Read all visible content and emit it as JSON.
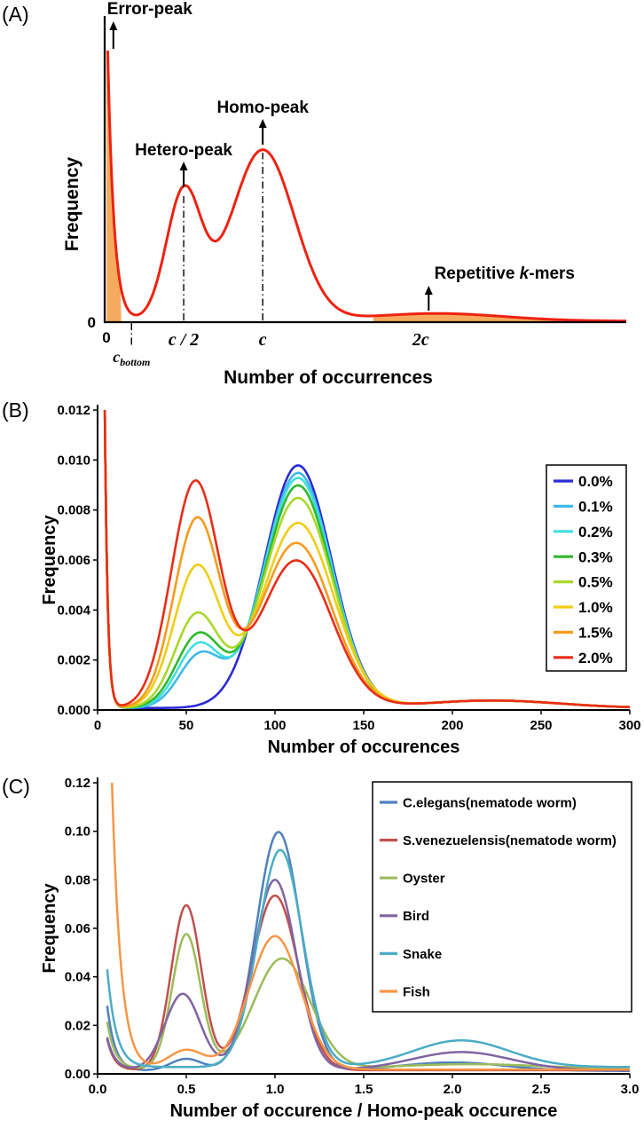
{
  "panels": {
    "a": {
      "tag": "(A)"
    },
    "b": {
      "tag": "(B)"
    },
    "c": {
      "tag": "(C)"
    }
  },
  "chart_data": [
    {
      "panel": "A",
      "type": "line",
      "xlabel": "Number of occurrences",
      "ylabel": "Frequency",
      "x_origin_label": "0",
      "y_zero_label": "0",
      "xlim": [
        0,
        3.3
      ],
      "ylim": [
        0,
        1
      ],
      "x_ticks": [
        {
          "label": "c / 2",
          "value": 0.5
        },
        {
          "label": "c",
          "value": 1.0
        },
        {
          "label": "2c",
          "value": 2.0
        }
      ],
      "c_bottom_tick": {
        "base": "c",
        "sub": "bottom",
        "value": 0.17
      },
      "annotations": [
        {
          "text": "Error-peak",
          "x": 0.055
        },
        {
          "text": "Hetero-peak",
          "x": 0.5
        },
        {
          "text": "Homo-peak",
          "x": 1.0
        },
        {
          "text_pre": "Repetitive ",
          "text_italic": "k",
          "text_post": "-mers",
          "x": 2.05
        }
      ],
      "curve": {
        "color": "#ee2211",
        "error_spike": {
          "height": 1.6,
          "decay": 0.04
        },
        "peaks": [
          {
            "x": 0.5,
            "y": 0.47,
            "width": 0.11
          },
          {
            "x": 1.0,
            "y": 0.63,
            "width": 0.2
          }
        ],
        "repetitive_bump": {
          "x": 2.1,
          "y": 0.028,
          "width": 0.42
        },
        "baseline": 0.004
      },
      "shade_color": "#f5ab5e",
      "shade_regions": [
        [
          0.012,
          0.105
        ],
        [
          1.7,
          3.3
        ]
      ]
    },
    {
      "panel": "B",
      "type": "line",
      "xlabel": "Number of occurences",
      "ylabel": "Frequency",
      "xlim": [
        0,
        300
      ],
      "ylim": [
        0,
        0.012
      ],
      "x_tick_values": [
        0,
        50,
        100,
        150,
        200,
        250,
        300
      ],
      "x_tick_labels": [
        "0",
        "50",
        "100",
        "150",
        "200",
        "250",
        "300"
      ],
      "y_tick_values": [
        0,
        0.002,
        0.004,
        0.006,
        0.008,
        0.01,
        0.012
      ],
      "y_tick_labels": [
        "0.000",
        "0.002",
        "0.004",
        "0.006",
        "0.008",
        "0.010",
        "0.012"
      ],
      "legend_position": "right",
      "series": [
        {
          "name": "0.0%",
          "color": "#2b2bd5",
          "error_spike": {
            "height": 0.15,
            "decay": 1.6
          },
          "peaks": [
            {
              "x": 113,
              "y": 0.0097,
              "width": 19
            }
          ],
          "repetitive_bump": {
            "x": 222,
            "y": 0.0003,
            "width": 38
          },
          "baseline": 8e-05
        },
        {
          "name": "0.1%",
          "color": "#3fb9ea",
          "error_spike": {
            "height": 0.15,
            "decay": 1.6
          },
          "peaks": [
            {
              "x": 58,
              "y": 0.0021,
              "width": 12
            },
            {
              "x": 113,
              "y": 0.0094,
              "width": 19
            }
          ],
          "repetitive_bump": {
            "x": 222,
            "y": 0.0003,
            "width": 38
          },
          "baseline": 8e-05
        },
        {
          "name": "0.2%",
          "color": "#41dede",
          "error_spike": {
            "height": 0.15,
            "decay": 1.6
          },
          "peaks": [
            {
              "x": 57,
              "y": 0.0025,
              "width": 12
            },
            {
              "x": 113,
              "y": 0.0092,
              "width": 19
            }
          ],
          "repetitive_bump": {
            "x": 222,
            "y": 0.0003,
            "width": 38
          },
          "baseline": 8e-05
        },
        {
          "name": "0.3%",
          "color": "#2eb82e",
          "error_spike": {
            "height": 0.15,
            "decay": 1.6
          },
          "peaks": [
            {
              "x": 57,
              "y": 0.0029,
              "width": 12.5
            },
            {
              "x": 113,
              "y": 0.0089,
              "width": 19
            }
          ],
          "repetitive_bump": {
            "x": 222,
            "y": 0.0003,
            "width": 38
          },
          "baseline": 8e-05
        },
        {
          "name": "0.5%",
          "color": "#a8d829",
          "error_spike": {
            "height": 0.15,
            "decay": 1.6
          },
          "peaks": [
            {
              "x": 56,
              "y": 0.0037,
              "width": 12.5
            },
            {
              "x": 113,
              "y": 0.0084,
              "width": 19.5
            }
          ],
          "repetitive_bump": {
            "x": 222,
            "y": 0.0003,
            "width": 38
          },
          "baseline": 8e-05
        },
        {
          "name": "1.0%",
          "color": "#f0cd15",
          "error_spike": {
            "height": 0.15,
            "decay": 1.6
          },
          "peaks": [
            {
              "x": 56,
              "y": 0.0056,
              "width": 13
            },
            {
              "x": 113,
              "y": 0.0074,
              "width": 20
            }
          ],
          "repetitive_bump": {
            "x": 222,
            "y": 0.0003,
            "width": 38
          },
          "baseline": 8e-05
        },
        {
          "name": "1.5%",
          "color": "#f59b1e",
          "error_spike": {
            "height": 0.15,
            "decay": 1.6
          },
          "peaks": [
            {
              "x": 56,
              "y": 0.0075,
              "width": 13
            },
            {
              "x": 112,
              "y": 0.0066,
              "width": 20
            }
          ],
          "repetitive_bump": {
            "x": 222,
            "y": 0.0003,
            "width": 38
          },
          "baseline": 8e-05
        },
        {
          "name": "2.0%",
          "color": "#e82d18",
          "error_spike": {
            "height": 0.15,
            "decay": 1.6
          },
          "peaks": [
            {
              "x": 55,
              "y": 0.009,
              "width": 13.5
            },
            {
              "x": 112,
              "y": 0.0059,
              "width": 20
            }
          ],
          "repetitive_bump": {
            "x": 222,
            "y": 0.0003,
            "width": 38
          },
          "baseline": 8e-05
        }
      ]
    },
    {
      "panel": "C",
      "type": "line",
      "xlabel": "Number of occurence / Homo-peak occurence",
      "ylabel": "Frequency",
      "xlim": [
        0,
        3
      ],
      "ylim": [
        0,
        0.12
      ],
      "x_tick_values": [
        0,
        0.5,
        1,
        1.5,
        2,
        2.5,
        3
      ],
      "x_tick_labels": [
        "0.0",
        "0.5",
        "1.0",
        "1.5",
        "2.0",
        "2.5",
        "3.0"
      ],
      "y_tick_values": [
        0,
        0.02,
        0.04,
        0.06,
        0.08,
        0.1,
        0.12
      ],
      "y_tick_labels": [
        "0.00",
        "0.02",
        "0.04",
        "0.06",
        "0.08",
        "0.10",
        "0.12"
      ],
      "legend_position": "top-right",
      "series": [
        {
          "name": "C.elegans(nematode worm)",
          "color": "#4f81bd",
          "error_spike": {
            "height": 0.09,
            "decay": 0.045
          },
          "peaks": [
            {
              "x": 0.5,
              "y": 0.005,
              "width": 0.09
            },
            {
              "x": 1.02,
              "y": 0.0985,
              "width": 0.125
            }
          ],
          "repetitive_bump": {
            "x": 2.0,
            "y": 0.0035,
            "width": 0.3
          },
          "baseline": 0.0012
        },
        {
          "name": "S.venezuelensis(nematode worm)",
          "color": "#c0504d",
          "error_spike": {
            "height": 0.05,
            "decay": 0.04
          },
          "peaks": [
            {
              "x": 0.5,
              "y": 0.068,
              "width": 0.085
            },
            {
              "x": 1.0,
              "y": 0.072,
              "width": 0.13
            }
          ],
          "baseline": 0.0015
        },
        {
          "name": "Oyster",
          "color": "#9bbb59",
          "error_spike": {
            "height": 0.065,
            "decay": 0.045
          },
          "peaks": [
            {
              "x": 0.5,
              "y": 0.0555,
              "width": 0.08
            },
            {
              "x": 1.04,
              "y": 0.0455,
              "width": 0.16
            }
          ],
          "repetitive_bump": {
            "x": 2.1,
            "y": 0.002,
            "width": 0.4
          },
          "baseline": 0.002
        },
        {
          "name": "Bird",
          "color": "#8064a2",
          "error_spike": {
            "height": 0.045,
            "decay": 0.045
          },
          "peaks": [
            {
              "x": 0.48,
              "y": 0.0315,
              "width": 0.1
            },
            {
              "x": 1.0,
              "y": 0.0785,
              "width": 0.12
            }
          ],
          "repetitive_bump": {
            "x": 2.05,
            "y": 0.0075,
            "width": 0.28
          },
          "baseline": 0.0015
        },
        {
          "name": "Snake",
          "color": "#4bacc6",
          "error_spike": {
            "height": 0.12,
            "decay": 0.05
          },
          "peaks": [
            {
              "x": 1.03,
              "y": 0.0895,
              "width": 0.125
            }
          ],
          "repetitive_bump": {
            "x": 2.05,
            "y": 0.011,
            "width": 0.27
          },
          "baseline": 0.0028
        },
        {
          "name": "Fish",
          "color": "#f79646",
          "error_spike": {
            "height": 0.6,
            "decay": 0.05
          },
          "peaks": [
            {
              "x": 0.5,
              "y": 0.008,
              "width": 0.1
            },
            {
              "x": 1.0,
              "y": 0.055,
              "width": 0.145
            }
          ],
          "baseline": 0.0018
        }
      ]
    }
  ]
}
